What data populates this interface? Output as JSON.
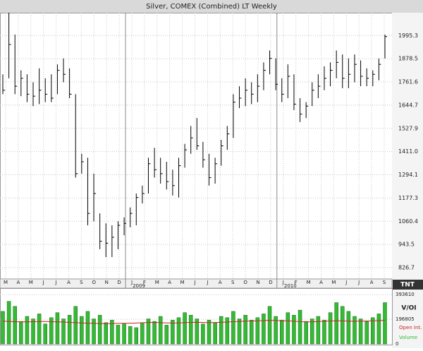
{
  "chart_data": [
    {
      "type": "ohlc",
      "title": "Silver, COMEX (Combined) LT Weekly",
      "color": "#000000",
      "grid": true,
      "ylim": [
        770,
        2110
      ],
      "yticks": [
        {
          "value": 826.7,
          "label": "826.7"
        },
        {
          "value": 943.5,
          "label": "943.5"
        },
        {
          "value": 1060.4,
          "label": "1060.4"
        },
        {
          "value": 1177.3,
          "label": "1177.3"
        },
        {
          "value": 1294.1,
          "label": "1294.1"
        },
        {
          "value": 1411,
          "label": "1411.0"
        },
        {
          "value": 1527.9,
          "label": "1527.9"
        },
        {
          "value": 1644.7,
          "label": "1644.7"
        },
        {
          "value": 1761.6,
          "label": "1761.6"
        },
        {
          "value": 1878.5,
          "label": "1878.5"
        },
        {
          "value": 1995.3,
          "label": "1995.3"
        }
      ],
      "x_labels": [
        "M",
        "A",
        "M",
        "J",
        "J",
        "A",
        "S",
        "O",
        "N",
        "D",
        "J",
        "F",
        "M",
        "A",
        "M",
        "J",
        "J",
        "A",
        "S",
        "O",
        "N",
        "D",
        "J",
        "F",
        "M",
        "A",
        "M",
        "J",
        "J",
        "A",
        "S"
      ],
      "x_year_labels": [
        "2009",
        "2010"
      ],
      "logo": "TNT",
      "high": [
        1800,
        2110,
        2000,
        1820,
        1800,
        1760,
        1830,
        1780,
        1800,
        1850,
        1880,
        1830,
        1700,
        1400,
        1380,
        1300,
        1100,
        1050,
        1040,
        1060,
        1080,
        1130,
        1200,
        1240,
        1380,
        1430,
        1380,
        1360,
        1320,
        1380,
        1450,
        1540,
        1580,
        1460,
        1400,
        1380,
        1470,
        1540,
        1700,
        1740,
        1780,
        1760,
        1800,
        1860,
        1920,
        1880,
        1780,
        1850,
        1800,
        1680,
        1660,
        1760,
        1800,
        1840,
        1860,
        1920,
        1900,
        1880,
        1900,
        1870,
        1830,
        1820,
        1880,
        2000
      ],
      "low": [
        1700,
        1780,
        1700,
        1690,
        1660,
        1640,
        1650,
        1660,
        1660,
        1700,
        1760,
        1680,
        1280,
        1300,
        1040,
        1060,
        920,
        880,
        880,
        920,
        990,
        1030,
        1040,
        1150,
        1200,
        1280,
        1250,
        1220,
        1190,
        1180,
        1330,
        1400,
        1420,
        1330,
        1240,
        1250,
        1340,
        1420,
        1480,
        1630,
        1640,
        1650,
        1660,
        1720,
        1800,
        1720,
        1660,
        1680,
        1620,
        1560,
        1580,
        1640,
        1680,
        1720,
        1740,
        1780,
        1730,
        1730,
        1760,
        1740,
        1740,
        1740,
        1770,
        1880
      ],
      "close": [
        1720,
        1950,
        1740,
        1780,
        1700,
        1690,
        1720,
        1700,
        1680,
        1820,
        1800,
        1700,
        1300,
        1360,
        1100,
        1200,
        960,
        950,
        980,
        1040,
        1050,
        1100,
        1180,
        1200,
        1350,
        1320,
        1300,
        1260,
        1240,
        1340,
        1420,
        1480,
        1440,
        1370,
        1280,
        1350,
        1440,
        1500,
        1660,
        1680,
        1720,
        1700,
        1740,
        1820,
        1880,
        1750,
        1700,
        1790,
        1650,
        1600,
        1640,
        1720,
        1740,
        1780,
        1820,
        1860,
        1780,
        1800,
        1850,
        1790,
        1780,
        1800,
        1850,
        1990
      ]
    },
    {
      "type": "bar",
      "legend_title": "V/OI",
      "ylim": [
        0,
        439900
      ],
      "yticks": [
        0,
        196805,
        393610
      ],
      "series": [
        {
          "name": "Open Int.",
          "color": "#cc2222",
          "values": [
            182000,
            180000,
            178000,
            177000,
            176000,
            178000,
            179000,
            180000,
            178000,
            176000,
            175000,
            172000,
            170000,
            168000,
            166000,
            165000,
            163000,
            162000,
            163000,
            164000,
            165000,
            166000,
            167000,
            169000,
            171000,
            172000,
            170000,
            168000,
            167000,
            168000,
            170000,
            172000,
            173000,
            172000,
            170000,
            171000,
            173000,
            175000,
            178000,
            180000,
            182000,
            183000,
            184000,
            186000,
            188000,
            187000,
            185000,
            184000,
            182000,
            178000,
            176000,
            177000,
            179000,
            181000,
            183000,
            185000,
            184000,
            182000,
            181000,
            182000,
            183000,
            184000,
            186000,
            188000
          ]
        },
        {
          "name": "Volume",
          "color": "#33bb33",
          "values": [
            260000,
            340000,
            300000,
            180000,
            220000,
            200000,
            240000,
            160000,
            210000,
            250000,
            200000,
            230000,
            300000,
            220000,
            260000,
            200000,
            230000,
            170000,
            190000,
            150000,
            160000,
            140000,
            130000,
            170000,
            200000,
            180000,
            220000,
            150000,
            190000,
            210000,
            250000,
            230000,
            200000,
            160000,
            190000,
            170000,
            220000,
            210000,
            260000,
            200000,
            230000,
            190000,
            210000,
            240000,
            300000,
            220000,
            190000,
            250000,
            230000,
            270000,
            180000,
            200000,
            220000,
            190000,
            250000,
            330000,
            300000,
            260000,
            220000,
            200000,
            180000,
            210000,
            240000,
            330000
          ]
        }
      ]
    }
  ]
}
